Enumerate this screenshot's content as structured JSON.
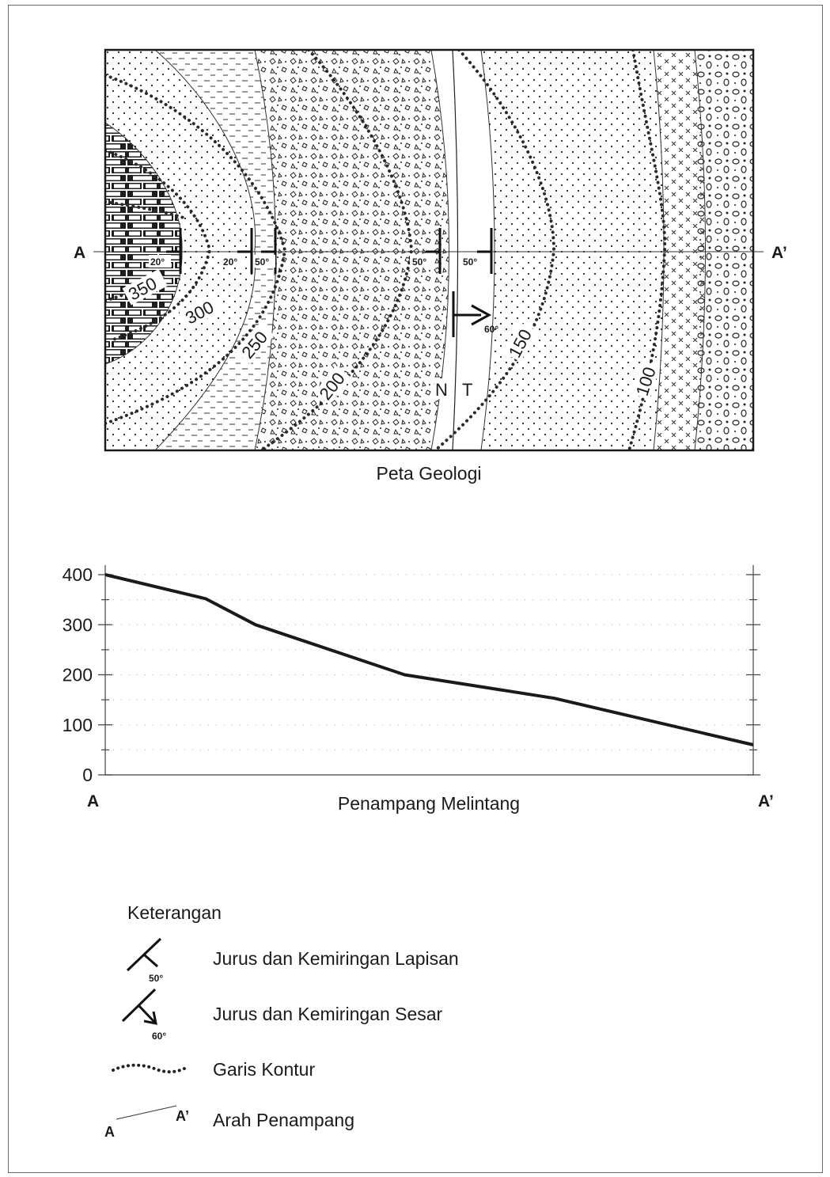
{
  "map": {
    "caption": "Peta Geologi",
    "section_start": "A",
    "section_end": "A’",
    "contours": [
      "350",
      "300",
      "250",
      "200",
      "150",
      "100"
    ],
    "dips": [
      "20°",
      "20°",
      "50°",
      "50°",
      "50°"
    ],
    "fault_dip": "60°",
    "fault_sides": [
      "N",
      "T"
    ]
  },
  "profile": {
    "title": "Penampang Melintang",
    "start_label": "A",
    "end_label": "A’"
  },
  "chart_data": {
    "type": "line",
    "title": "Penampang Melintang",
    "xlabel": "",
    "ylabel": "",
    "x_labels": [
      "A",
      "A’"
    ],
    "ylim": [
      0,
      400
    ],
    "y_ticks": [
      "0",
      "100",
      "200",
      "300",
      "400"
    ],
    "grid": true,
    "series": [
      {
        "x": [
          0,
          0.155,
          0.232,
          0.462,
          0.693,
          1.0
        ],
        "y": [
          400,
          352,
          300,
          200,
          153,
          60
        ]
      }
    ]
  },
  "legend": {
    "title": "Keterangan",
    "items": [
      {
        "label": "Jurus dan Kemiringan Lapisan",
        "symbol_text": "50°",
        "icon": "strike-dip-bed-icon"
      },
      {
        "label": "Jurus dan Kemiringan Sesar",
        "symbol_text": "60°",
        "icon": "strike-dip-fault-icon"
      },
      {
        "label": "Garis Kontur",
        "symbol_text": "",
        "icon": "contour-line-icon"
      },
      {
        "label": "Arah Penampang",
        "symbol_text_start": "A",
        "symbol_text_end": "A’",
        "icon": "section-direction-icon"
      }
    ]
  }
}
